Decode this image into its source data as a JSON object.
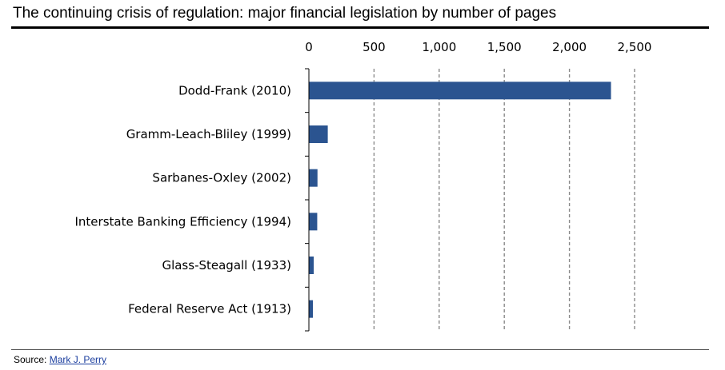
{
  "title": "The continuing crisis of regulation: major financial legislation by number of pages",
  "source": {
    "label": "Source:",
    "author": "Mark J. Perry"
  },
  "chart_data": {
    "type": "bar",
    "orientation": "horizontal",
    "categories": [
      "Dodd-Frank (2010)",
      "Gramm-Leach-Bliley (1999)",
      "Sarbanes-Oxley (2002)",
      "Interstate Banking Efficiency (1994)",
      "Glass-Steagall (1933)",
      "Federal Reserve Act (1913)"
    ],
    "values": [
      2319,
      145,
      66,
      64,
      37,
      31
    ],
    "xlim": [
      0,
      2500
    ],
    "ticks": [
      0,
      500,
      1000,
      1500,
      2000,
      2500
    ],
    "tick_labels": [
      "0",
      "500",
      "1,000",
      "1,500",
      "2,000",
      "2,500"
    ],
    "axis_position": "top",
    "grid": "vertical dashed",
    "bar_color": "#2b5490"
  }
}
